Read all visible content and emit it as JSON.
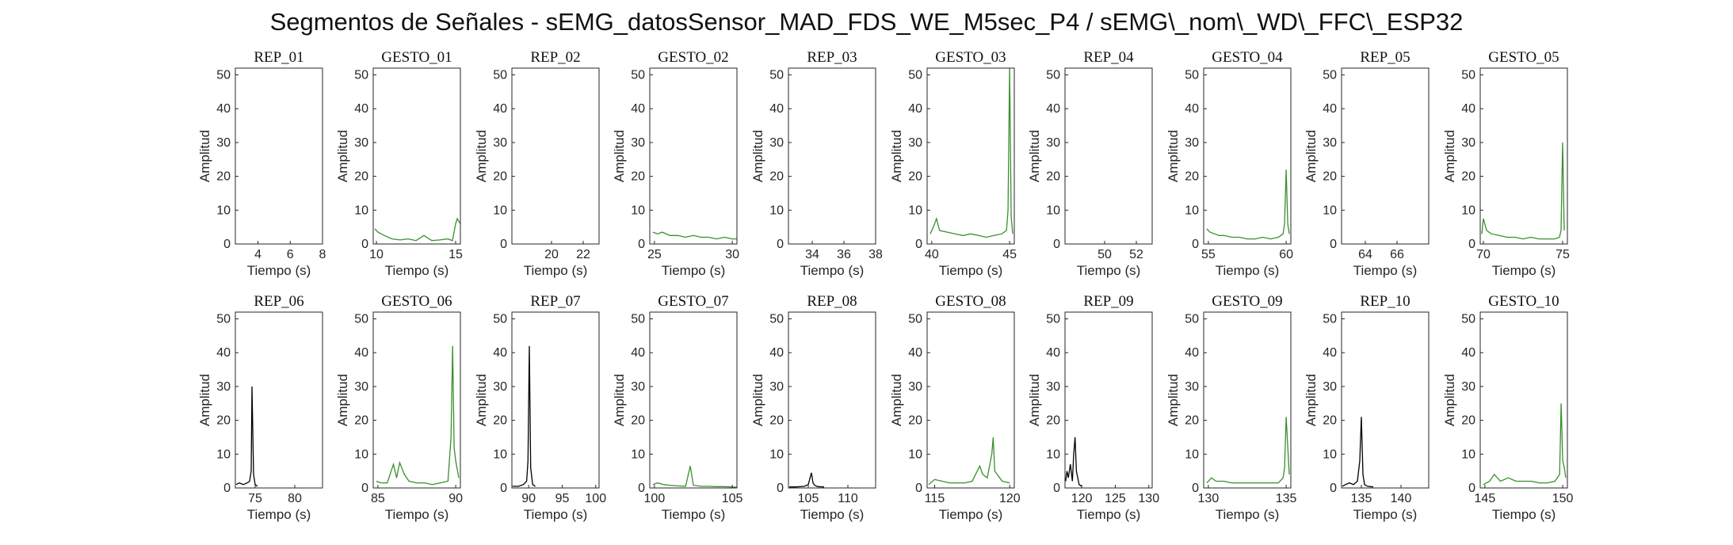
{
  "title": "Segmentos de Señales - sEMG_datosSensor_MAD_FDS_WE_M5sec_P4 / sEMG\\_nom\\_WD\\_FFC\\_ESP32",
  "colors": {
    "rep": "#000000",
    "gesture": "#3a8f2e"
  },
  "chart_data": [
    {
      "type": "line",
      "title": "REP_01",
      "xlabel": "Tiempo (s)",
      "ylabel": "Amplitud",
      "xlim": [
        2.6,
        8
      ],
      "ylim": [
        0,
        52
      ],
      "xticks": [
        4,
        6,
        8
      ],
      "yticks": [
        0,
        10,
        20,
        30,
        40,
        50
      ],
      "color": "#000000",
      "series": [
        {
          "x": [],
          "y": []
        }
      ]
    },
    {
      "type": "line",
      "title": "GESTO_01",
      "xlabel": "Tiempo (s)",
      "ylabel": "Amplitud",
      "xlim": [
        9.8,
        15.3
      ],
      "ylim": [
        0,
        52
      ],
      "xticks": [
        10,
        15
      ],
      "yticks": [
        0,
        10,
        20,
        30,
        40,
        50
      ],
      "color": "#3a8f2e",
      "series": [
        {
          "x": [
            9.9,
            10.1,
            10.3,
            10.5,
            11,
            11.5,
            12,
            12.5,
            13,
            13.5,
            14,
            14.5,
            14.8,
            15,
            15.1,
            15.3
          ],
          "y": [
            4.5,
            3.5,
            3,
            2.5,
            1.5,
            1.2,
            1.5,
            1,
            2.5,
            1,
            1.2,
            1.5,
            1,
            6,
            7.5,
            6
          ]
        }
      ]
    },
    {
      "type": "line",
      "title": "REP_02",
      "xlabel": "Tiempo (s)",
      "ylabel": "Amplitud",
      "xlim": [
        17.5,
        23
      ],
      "ylim": [
        0,
        52
      ],
      "xticks": [
        20,
        22
      ],
      "yticks": [
        0,
        10,
        20,
        30,
        40,
        50
      ],
      "color": "#000000",
      "series": [
        {
          "x": [],
          "y": []
        }
      ]
    },
    {
      "type": "line",
      "title": "GESTO_02",
      "xlabel": "Tiempo (s)",
      "ylabel": "Amplitud",
      "xlim": [
        24.7,
        30.3
      ],
      "ylim": [
        0,
        52
      ],
      "xticks": [
        25,
        30
      ],
      "yticks": [
        0,
        10,
        20,
        30,
        40,
        50
      ],
      "color": "#3a8f2e",
      "series": [
        {
          "x": [
            24.9,
            25.2,
            25.5,
            26,
            26.5,
            27,
            27.5,
            28,
            28.5,
            29,
            29.5,
            30,
            30.3
          ],
          "y": [
            3.5,
            3,
            3.5,
            2.5,
            2.5,
            2,
            2.5,
            2,
            2,
            1.5,
            2,
            1.5,
            1.5
          ]
        }
      ]
    },
    {
      "type": "line",
      "title": "REP_03",
      "xlabel": "Tiempo (s)",
      "ylabel": "Amplitud",
      "xlim": [
        32.5,
        38
      ],
      "ylim": [
        0,
        52
      ],
      "xticks": [
        34,
        36,
        38
      ],
      "yticks": [
        0,
        10,
        20,
        30,
        40,
        50
      ],
      "color": "#000000",
      "series": [
        {
          "x": [],
          "y": []
        }
      ]
    },
    {
      "type": "line",
      "title": "GESTO_03",
      "xlabel": "Tiempo (s)",
      "ylabel": "Amplitud",
      "xlim": [
        39.7,
        45.3
      ],
      "ylim": [
        0,
        52
      ],
      "xticks": [
        40,
        45
      ],
      "yticks": [
        0,
        10,
        20,
        30,
        40,
        50
      ],
      "color": "#3a8f2e",
      "series": [
        {
          "x": [
            39.9,
            40.1,
            40.3,
            40.5,
            41,
            41.5,
            42,
            42.5,
            43,
            43.5,
            44,
            44.5,
            44.8,
            44.9,
            45,
            45.1,
            45.2
          ],
          "y": [
            3,
            5,
            7.5,
            4,
            3.5,
            3,
            2.5,
            3,
            2.5,
            2,
            2.5,
            3,
            4,
            10,
            52,
            8,
            3
          ]
        }
      ]
    },
    {
      "type": "line",
      "title": "REP_04",
      "xlabel": "Tiempo (s)",
      "ylabel": "Amplitud",
      "xlim": [
        47.5,
        53
      ],
      "ylim": [
        0,
        52
      ],
      "xticks": [
        50,
        52
      ],
      "yticks": [
        0,
        10,
        20,
        30,
        40,
        50
      ],
      "color": "#000000",
      "series": [
        {
          "x": [],
          "y": []
        }
      ]
    },
    {
      "type": "line",
      "title": "GESTO_04",
      "xlabel": "Tiempo (s)",
      "ylabel": "Amplitud",
      "xlim": [
        54.7,
        60.3
      ],
      "ylim": [
        0,
        52
      ],
      "xticks": [
        55,
        60
      ],
      "yticks": [
        0,
        10,
        20,
        30,
        40,
        50
      ],
      "color": "#3a8f2e",
      "series": [
        {
          "x": [
            54.9,
            55.1,
            55.4,
            55.7,
            56,
            56.5,
            57,
            57.5,
            58,
            58.5,
            59,
            59.5,
            59.8,
            59.9,
            60,
            60.1,
            60.2
          ],
          "y": [
            4.5,
            3.5,
            3,
            2.5,
            2.5,
            2,
            2,
            1.5,
            1.5,
            2,
            1.5,
            2,
            3,
            6,
            22,
            6,
            3
          ]
        }
      ]
    },
    {
      "type": "line",
      "title": "REP_05",
      "xlabel": "Tiempo (s)",
      "ylabel": "Amplitud",
      "xlim": [
        62.5,
        68
      ],
      "ylim": [
        0,
        52
      ],
      "xticks": [
        64,
        66
      ],
      "yticks": [
        0,
        10,
        20,
        30,
        40,
        50
      ],
      "color": "#000000",
      "series": [
        {
          "x": [],
          "y": []
        }
      ]
    },
    {
      "type": "line",
      "title": "GESTO_05",
      "xlabel": "Tiempo (s)",
      "ylabel": "Amplitud",
      "xlim": [
        69.8,
        75.3
      ],
      "ylim": [
        0,
        52
      ],
      "xticks": [
        70,
        75
      ],
      "yticks": [
        0,
        10,
        20,
        30,
        40,
        50
      ],
      "color": "#3a8f2e",
      "series": [
        {
          "x": [
            69.9,
            70,
            70.2,
            70.5,
            71,
            71.5,
            72,
            72.5,
            73,
            73.5,
            74,
            74.5,
            74.8,
            74.9,
            75,
            75.1
          ],
          "y": [
            3,
            7.5,
            4,
            3,
            2.5,
            2,
            2,
            1.5,
            2,
            1.5,
            1.5,
            1.5,
            2,
            4,
            30,
            4
          ]
        }
      ]
    },
    {
      "type": "line",
      "title": "REP_06",
      "xlabel": "Tiempo (s)",
      "ylabel": "Amplitud",
      "xlim": [
        72.5,
        83.5
      ],
      "ylim": [
        0,
        52
      ],
      "xticks": [
        75,
        80
      ],
      "yticks": [
        0,
        10,
        20,
        30,
        40,
        50
      ],
      "color": "#000000",
      "series": [
        {
          "x": [
            72.6,
            73,
            73.5,
            74,
            74.3,
            74.5,
            74.6,
            74.8,
            75,
            75.3
          ],
          "y": [
            1,
            1.5,
            1,
            1.5,
            2,
            5,
            30,
            4,
            1,
            0.5
          ]
        }
      ]
    },
    {
      "type": "line",
      "title": "GESTO_06",
      "xlabel": "Tiempo (s)",
      "ylabel": "Amplitud",
      "xlim": [
        84.7,
        90.3
      ],
      "ylim": [
        0,
        52
      ],
      "xticks": [
        85,
        90
      ],
      "yticks": [
        0,
        10,
        20,
        30,
        40,
        50
      ],
      "color": "#3a8f2e",
      "series": [
        {
          "x": [
            84.9,
            85.2,
            85.6,
            86,
            86.2,
            86.4,
            86.7,
            87,
            87.5,
            88,
            88.5,
            89,
            89.5,
            89.7,
            89.8,
            89.9,
            90,
            90.2
          ],
          "y": [
            2,
            1.5,
            1.5,
            7,
            3,
            7.5,
            4,
            2,
            1.5,
            1.5,
            1,
            1.5,
            2,
            15,
            42,
            12,
            8,
            3
          ]
        }
      ]
    },
    {
      "type": "line",
      "title": "REP_07",
      "xlabel": "Tiempo (s)",
      "ylabel": "Amplitud",
      "xlim": [
        87.5,
        100.5
      ],
      "ylim": [
        0,
        52
      ],
      "xticks": [
        90,
        95,
        100
      ],
      "yticks": [
        0,
        10,
        20,
        30,
        40,
        50
      ],
      "color": "#000000",
      "series": [
        {
          "x": [
            87.6,
            88.5,
            89.2,
            89.7,
            89.9,
            90.1,
            90.3,
            90.6,
            91
          ],
          "y": [
            0.5,
            0.5,
            1,
            2,
            8,
            42,
            6,
            1,
            0.5
          ]
        }
      ]
    },
    {
      "type": "line",
      "title": "GESTO_07",
      "xlabel": "Tiempo (s)",
      "ylabel": "Amplitud",
      "xlim": [
        99.7,
        105.3
      ],
      "ylim": [
        0,
        52
      ],
      "xticks": [
        100,
        105
      ],
      "yticks": [
        0,
        10,
        20,
        30,
        40,
        50
      ],
      "color": "#3a8f2e",
      "series": [
        {
          "x": [
            99.9,
            100.2,
            100.6,
            101,
            101.5,
            102,
            102.3,
            102.5,
            103,
            103.5,
            104,
            104.5,
            105,
            105.3
          ],
          "y": [
            1,
            1.5,
            1,
            0.8,
            0.6,
            0.5,
            6.5,
            0.8,
            0.5,
            0.5,
            0.4,
            0.4,
            0.3,
            0.2
          ]
        }
      ]
    },
    {
      "type": "line",
      "title": "REP_08",
      "xlabel": "Tiempo (s)",
      "ylabel": "Amplitud",
      "xlim": [
        102.5,
        113.5
      ],
      "ylim": [
        0,
        52
      ],
      "xticks": [
        105,
        110
      ],
      "yticks": [
        0,
        10,
        20,
        30,
        40,
        50
      ],
      "color": "#000000",
      "series": [
        {
          "x": [
            102.6,
            103.5,
            104.5,
            105,
            105.4,
            105.6,
            105.8,
            106.2,
            107
          ],
          "y": [
            0.3,
            0.3,
            0.5,
            1,
            4.5,
            1.5,
            0.8,
            0.4,
            0.3
          ]
        }
      ]
    },
    {
      "type": "line",
      "title": "GESTO_08",
      "xlabel": "Tiempo (s)",
      "ylabel": "Amplitud",
      "xlim": [
        114.5,
        120.3
      ],
      "ylim": [
        0,
        52
      ],
      "xticks": [
        115,
        120
      ],
      "yticks": [
        0,
        10,
        20,
        30,
        40,
        50
      ],
      "color": "#3a8f2e",
      "series": [
        {
          "x": [
            114.6,
            115,
            115.5,
            116,
            116.5,
            117,
            117.5,
            118,
            118.2,
            118.5,
            118.8,
            118.9,
            119,
            119.5,
            120
          ],
          "y": [
            1,
            2.5,
            2,
            1.5,
            1.5,
            1.5,
            2,
            6.5,
            4,
            3,
            10,
            15,
            5,
            2,
            1.5
          ]
        }
      ]
    },
    {
      "type": "line",
      "title": "REP_09",
      "xlabel": "Tiempo (s)",
      "ylabel": "Amplitud",
      "xlim": [
        117.5,
        130.5
      ],
      "ylim": [
        0,
        52
      ],
      "xticks": [
        120,
        125,
        130
      ],
      "yticks": [
        0,
        10,
        20,
        30,
        40,
        50
      ],
      "color": "#000000",
      "series": [
        {
          "x": [
            117.6,
            117.8,
            118,
            118.3,
            118.6,
            118.8,
            119,
            119.2,
            119.6,
            120
          ],
          "y": [
            2,
            5,
            3,
            7,
            2,
            10,
            15,
            5,
            1,
            0.5
          ]
        }
      ]
    },
    {
      "type": "line",
      "title": "GESTO_09",
      "xlabel": "Tiempo (s)",
      "ylabel": "Amplitud",
      "xlim": [
        129.7,
        135.3
      ],
      "ylim": [
        0,
        52
      ],
      "xticks": [
        130,
        135
      ],
      "yticks": [
        0,
        10,
        20,
        30,
        40,
        50
      ],
      "color": "#3a8f2e",
      "series": [
        {
          "x": [
            129.9,
            130.2,
            130.5,
            131,
            131.5,
            132,
            132.5,
            133,
            133.5,
            134,
            134.5,
            134.8,
            134.9,
            135,
            135.2
          ],
          "y": [
            1.5,
            3,
            2,
            2,
            1.5,
            1.5,
            1.5,
            1.5,
            1.5,
            1.5,
            1.5,
            3,
            6,
            21,
            4
          ]
        }
      ]
    },
    {
      "type": "line",
      "title": "REP_10",
      "xlabel": "Tiempo (s)",
      "ylabel": "Amplitud",
      "xlim": [
        132.5,
        143.5
      ],
      "ylim": [
        0,
        52
      ],
      "xticks": [
        135,
        140
      ],
      "yticks": [
        0,
        10,
        20,
        30,
        40,
        50
      ],
      "color": "#000000",
      "series": [
        {
          "x": [
            132.6,
            133,
            133.5,
            134,
            134.5,
            134.8,
            135,
            135.2,
            135.4,
            135.8,
            136.5
          ],
          "y": [
            0.5,
            1,
            1.5,
            1,
            2,
            8,
            21,
            4,
            1,
            0.5,
            0.3
          ]
        }
      ]
    },
    {
      "type": "line",
      "title": "GESTO_10",
      "xlabel": "Tiempo (s)",
      "ylabel": "Amplitud",
      "xlim": [
        144.7,
        150.3
      ],
      "ylim": [
        0,
        52
      ],
      "xticks": [
        145,
        150
      ],
      "yticks": [
        0,
        10,
        20,
        30,
        40,
        50
      ],
      "color": "#3a8f2e",
      "series": [
        {
          "x": [
            144.9,
            145.3,
            145.6,
            146,
            146.5,
            147,
            147.5,
            148,
            148.5,
            149,
            149.5,
            149.8,
            149.9,
            150,
            150.1,
            150.2
          ],
          "y": [
            1,
            2,
            4,
            2,
            3,
            2,
            2,
            2,
            1.5,
            1.5,
            2,
            4,
            25,
            8,
            6,
            3
          ]
        }
      ]
    }
  ]
}
